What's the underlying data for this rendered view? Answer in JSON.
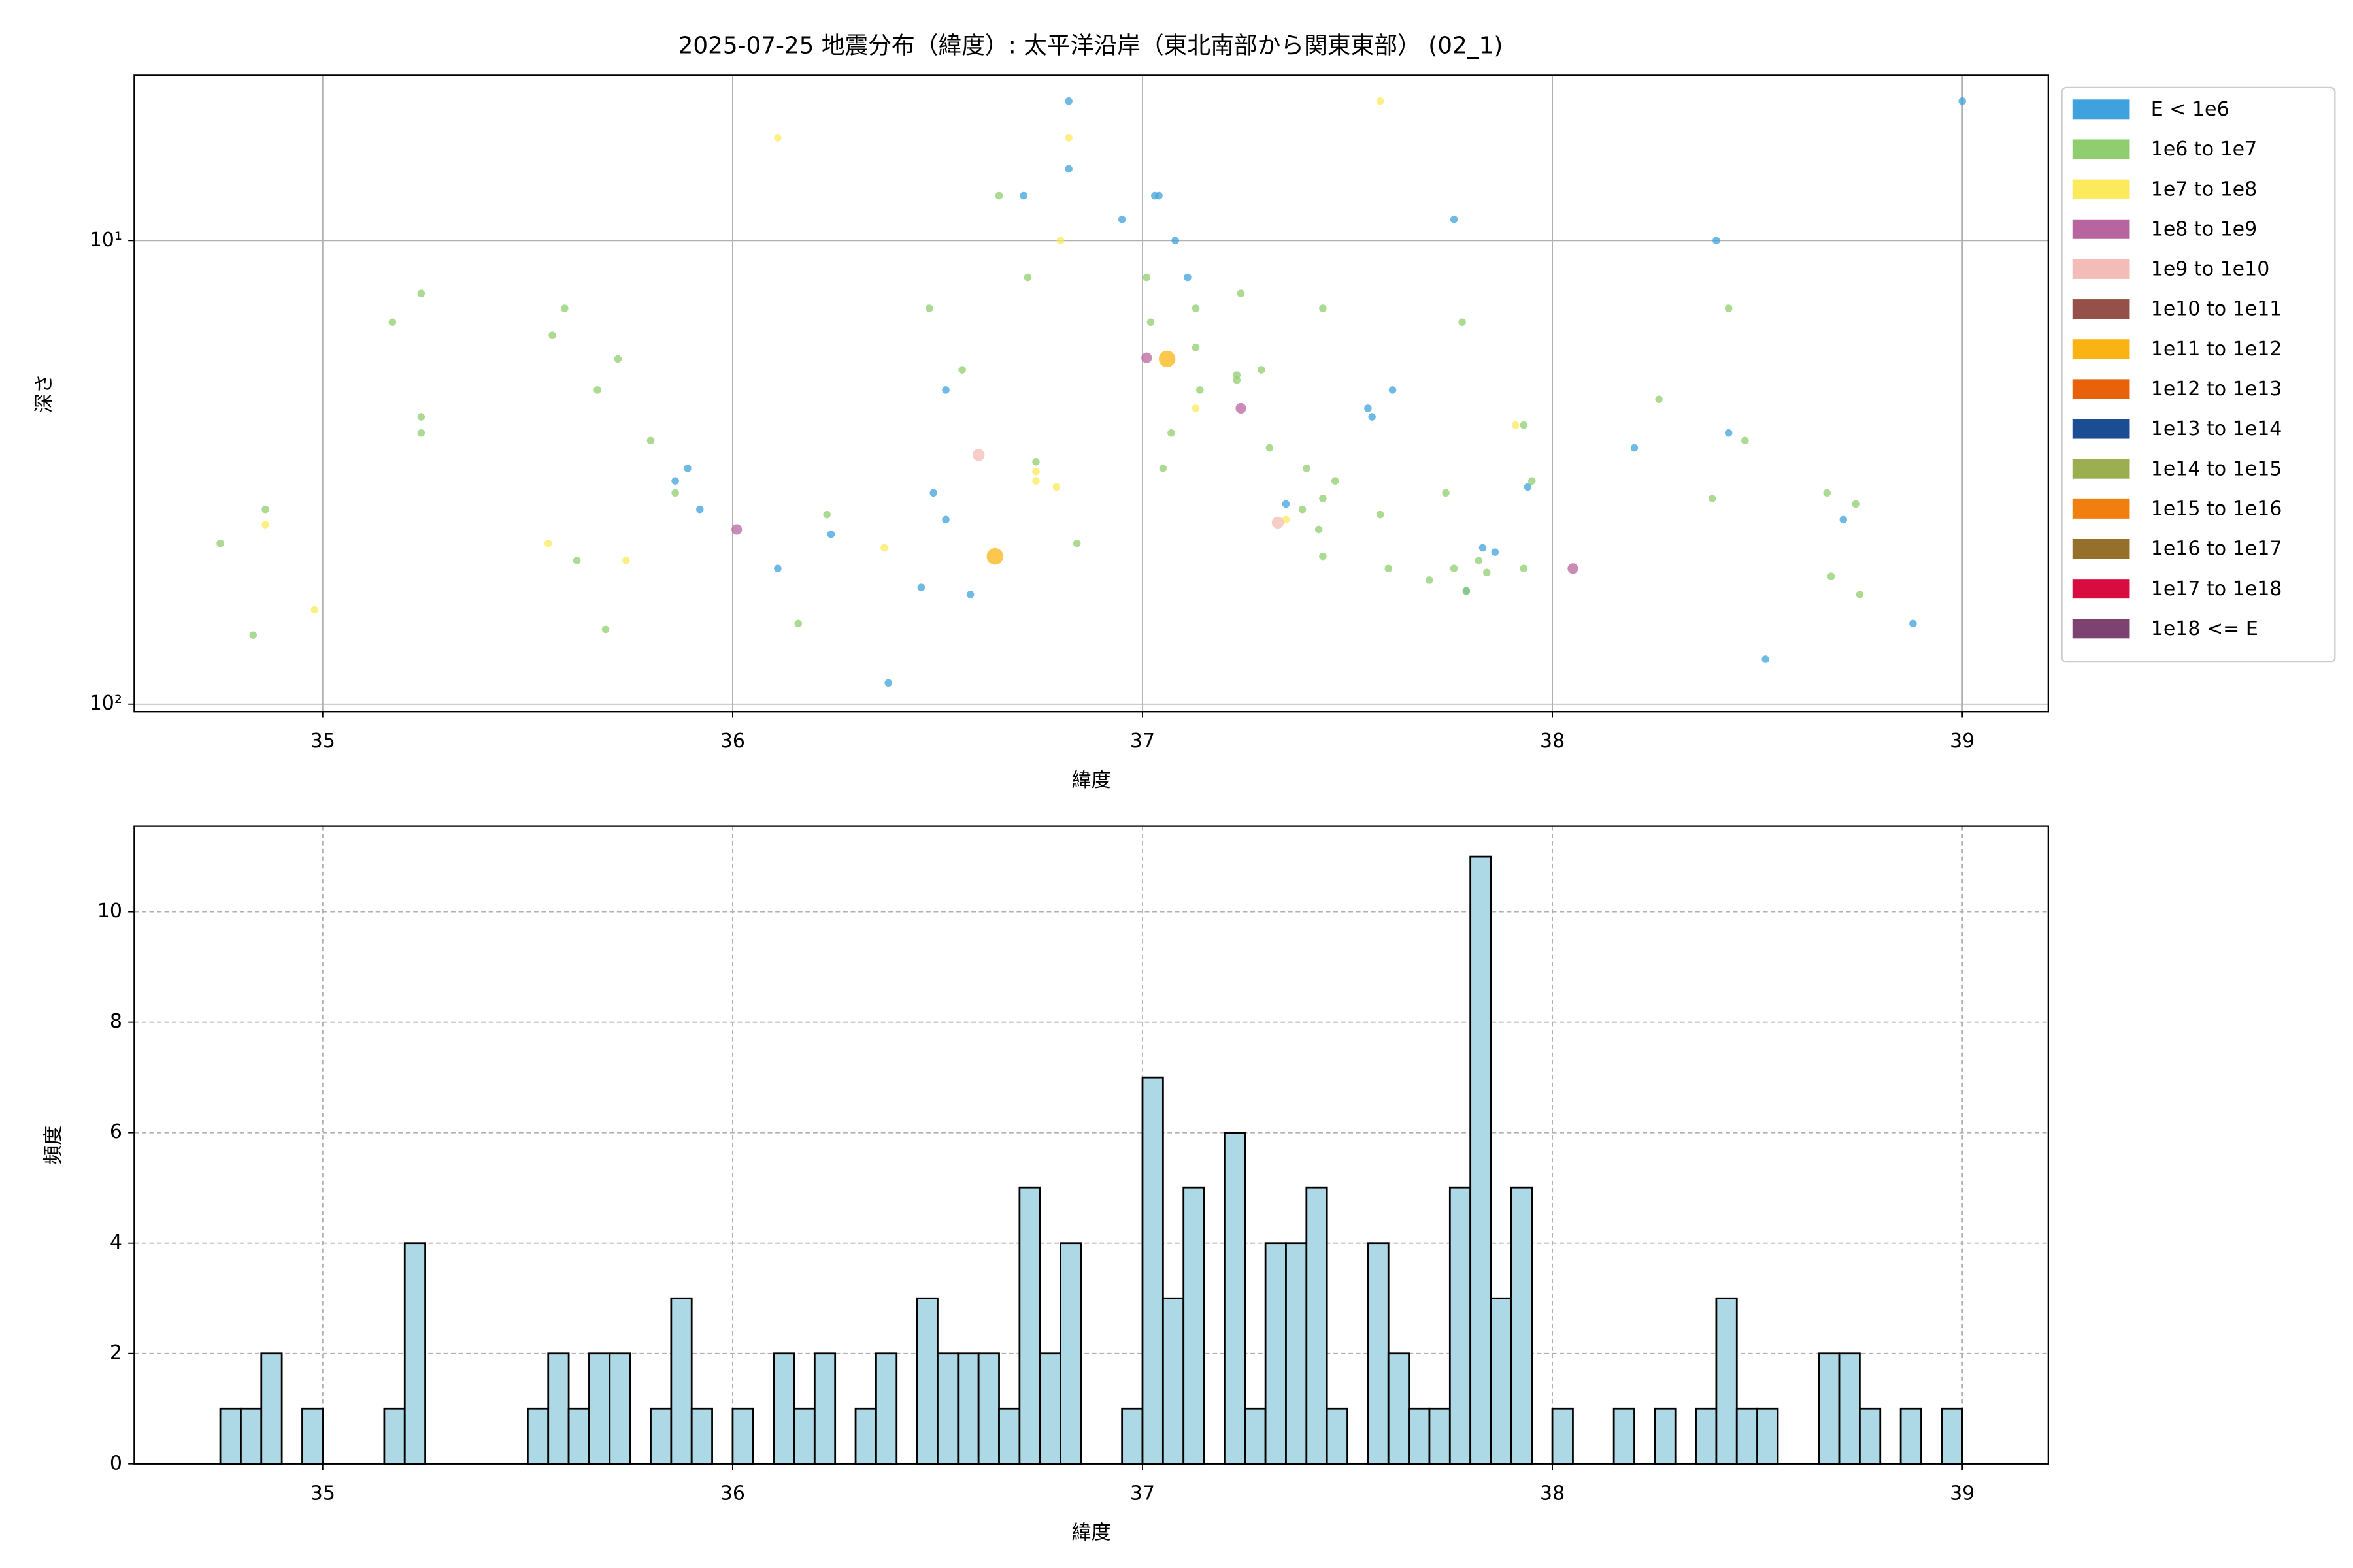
{
  "chart_data": [
    {
      "type": "scatter",
      "title": "2025-07-25 地震分布（緯度）: 太平洋沿岸（東北南部から関東東部） (02_1)",
      "xlabel": "緯度",
      "ylabel": "深さ",
      "yscale": "log",
      "grid": true,
      "legend": "outside right",
      "xlim": [
        34.54,
        39.21
      ],
      "ylim": [
        103.8,
        4.4
      ],
      "xticks": [
        35,
        36,
        37,
        38,
        39
      ],
      "yticks": [
        {
          "value": 10,
          "label": "10¹"
        },
        {
          "value": 100,
          "label": "10²"
        }
      ],
      "series": [
        {
          "name": "E < 1e6",
          "color": "#3fa2dc",
          "x": [
            36.82,
            39.0,
            36.82,
            36.71,
            37.03,
            37.04,
            36.95,
            37.76,
            37.08,
            38.4,
            37.11,
            36.52,
            37.61,
            37.55,
            37.56,
            38.2,
            38.43,
            35.89,
            35.86,
            37.94,
            36.49,
            35.92,
            36.52,
            38.71,
            37.35,
            36.24,
            37.83,
            37.86,
            36.11,
            36.46,
            36.58,
            37.79,
            38.88,
            38.52,
            36.38
          ],
          "values": [
            5.0,
            5.0,
            7.0,
            8.0,
            8.0,
            8.0,
            9.0,
            9.0,
            10.0,
            10.0,
            12.0,
            21.0,
            21.0,
            23.0,
            24.0,
            28.0,
            26.0,
            31.0,
            33.0,
            34.0,
            35.0,
            38.0,
            40.0,
            40.0,
            37.0,
            43.0,
            46.0,
            47.0,
            51.0,
            56.0,
            58.0,
            57.0,
            67.0,
            80.0,
            90.0
          ]
        },
        {
          "name": "1e6 to 1e7",
          "color": "#8fcd6e",
          "x": [
            36.65,
            36.72,
            37.01,
            37.24,
            35.24,
            35.17,
            37.02,
            37.78,
            36.48,
            35.59,
            37.13,
            37.44,
            35.56,
            38.43,
            37.13,
            35.72,
            36.56,
            37.23,
            37.29,
            35.67,
            37.14,
            38.26,
            35.24,
            35.24,
            37.93,
            37.07,
            35.8,
            38.47,
            37.31,
            36.74,
            37.4,
            37.95,
            37.74,
            37.47,
            35.86,
            37.44,
            38.39,
            38.67,
            38.74,
            34.86,
            36.23,
            37.39,
            37.58,
            37.05,
            37.43,
            34.75,
            36.84,
            37.44,
            35.62,
            37.6,
            37.76,
            37.84,
            37.93,
            37.7,
            37.82,
            38.68,
            37.79,
            38.75,
            36.16,
            35.69,
            34.83,
            37.23
          ],
          "values": [
            8.0,
            12.0,
            12.0,
            13.0,
            13.0,
            15.0,
            15.0,
            15.0,
            14.0,
            14.0,
            14.0,
            14.0,
            16.0,
            14.0,
            17.0,
            18.0,
            19.0,
            20.0,
            19.0,
            21.0,
            21.0,
            22.0,
            24.0,
            26.0,
            25.0,
            26.0,
            27.0,
            27.0,
            28.0,
            30.0,
            31.0,
            33.0,
            35.0,
            33.0,
            35.0,
            36.0,
            36.0,
            35.0,
            37.0,
            38.0,
            39.0,
            38.0,
            39.0,
            31.0,
            42.0,
            45.0,
            45.0,
            48.0,
            49.0,
            51.0,
            51.0,
            52.0,
            51.0,
            54.0,
            49.0,
            53.0,
            57.0,
            58.0,
            67.0,
            69.0,
            71.0,
            19.5
          ]
        },
        {
          "name": "1e7 to 1e8",
          "color": "#fdea5c",
          "x": [
            37.58,
            36.11,
            36.82,
            36.8,
            37.13,
            37.91,
            36.74,
            36.74,
            36.79,
            37.35,
            34.86,
            35.55,
            36.37,
            35.74,
            34.98
          ],
          "values": [
            5.0,
            6.0,
            6.0,
            10.0,
            23.0,
            25.0,
            31.5,
            33.0,
            34.0,
            40.0,
            41.0,
            45.0,
            46.0,
            49.0,
            62.6
          ]
        },
        {
          "name": "1e8 to 1e9",
          "color": "#b8649f",
          "x": [
            37.01,
            37.24,
            36.01,
            38.05
          ],
          "values": [
            17.9,
            23.0,
            42.0,
            51.0
          ]
        },
        {
          "name": "1e9 to 1e10",
          "color": "#f4bcb6",
          "x": [
            36.6,
            37.33
          ],
          "values": [
            29.0,
            40.6
          ]
        },
        {
          "name": "1e10 to 1e11",
          "color": "#955149",
          "x": [],
          "values": []
        },
        {
          "name": "1e11 to 1e12",
          "color": "#f9b413",
          "x": [
            37.06,
            36.64
          ],
          "values": [
            18.0,
            48.0
          ]
        },
        {
          "name": "1e12 to 1e13",
          "color": "#e8620c",
          "x": [],
          "values": []
        },
        {
          "name": "1e13 to 1e14",
          "color": "#1b4d94",
          "x": [],
          "values": []
        },
        {
          "name": "1e14 to 1e15",
          "color": "#9baf50",
          "x": [],
          "values": []
        },
        {
          "name": "1e15 to 1e16",
          "color": "#f17f0f",
          "x": [],
          "values": []
        },
        {
          "name": "1e16 to 1e17",
          "color": "#94702a",
          "x": [],
          "values": []
        },
        {
          "name": "1e17 to 1e18",
          "color": "#d90c3f",
          "x": [],
          "values": []
        },
        {
          "name": "1e18 <= E",
          "color": "#7d426f",
          "x": [],
          "values": []
        }
      ]
    },
    {
      "type": "histogram",
      "xlabel": "緯度",
      "ylabel": "頻度",
      "grid": true,
      "color": "#add8e6",
      "edgecolor": "#000000",
      "xlim": [
        34.54,
        39.21
      ],
      "ylim": [
        0,
        11.55
      ],
      "xticks": [
        35,
        36,
        37,
        38,
        39
      ],
      "yticks": [
        0,
        2,
        4,
        6,
        8,
        10
      ],
      "bins": [
        34.75,
        34.8,
        34.85,
        34.9,
        34.95,
        35.0,
        35.05,
        35.1,
        35.15,
        35.2,
        35.25,
        35.3,
        35.35,
        35.4,
        35.45,
        35.5,
        35.55,
        35.6,
        35.65,
        35.7,
        35.75,
        35.8,
        35.85,
        35.9,
        35.95,
        36.0,
        36.05,
        36.1,
        36.15,
        36.2,
        36.25,
        36.3,
        36.35,
        36.4,
        36.45,
        36.5,
        36.55,
        36.6,
        36.65,
        36.7,
        36.75,
        36.8,
        36.85,
        36.9,
        36.95,
        37.0,
        37.05,
        37.1,
        37.15,
        37.2,
        37.25,
        37.3,
        37.35,
        37.4,
        37.45,
        37.5,
        37.55,
        37.6,
        37.65,
        37.7,
        37.75,
        37.8,
        37.85,
        37.9,
        37.95,
        38.0,
        38.05,
        38.1,
        38.15,
        38.2,
        38.25,
        38.3,
        38.35,
        38.4,
        38.45,
        38.5,
        38.55,
        38.6,
        38.65,
        38.7,
        38.75,
        38.8,
        38.85,
        38.9,
        38.95,
        39.0
      ],
      "values": [
        1,
        1,
        2,
        0,
        1,
        0,
        0,
        0,
        1,
        4,
        0,
        0,
        0,
        0,
        0,
        1,
        2,
        1,
        2,
        2,
        0,
        1,
        3,
        1,
        0,
        1,
        0,
        2,
        1,
        2,
        0,
        1,
        2,
        0,
        3,
        2,
        2,
        2,
        1,
        5,
        2,
        4,
        0,
        0,
        1,
        7,
        3,
        5,
        0,
        6,
        1,
        4,
        4,
        5,
        1,
        0,
        4,
        2,
        1,
        1,
        5,
        11,
        3,
        5,
        0,
        1,
        0,
        0,
        1,
        0,
        1,
        0,
        1,
        3,
        1,
        1,
        0,
        0,
        2,
        2,
        1,
        0,
        1,
        0,
        1
      ]
    }
  ]
}
